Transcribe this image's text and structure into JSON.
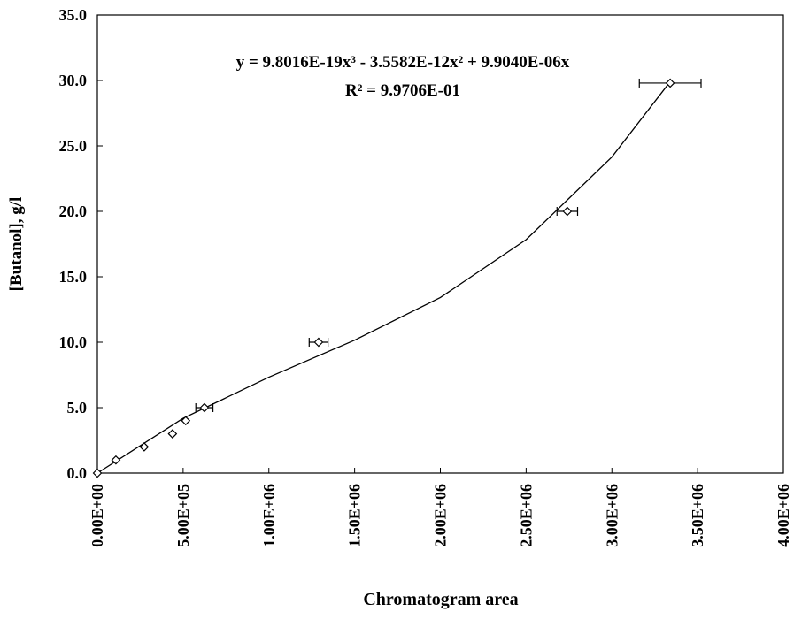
{
  "chart_data": {
    "type": "scatter",
    "equation": "y = 9.8016E-19x³ - 3.5582E-12x² + 9.9040E-06x",
    "r_squared": "R² = 9.9706E-01",
    "x_label": "Chromatogram area",
    "y_label": "[Butanol], g/l",
    "series": [
      {
        "color": "#000000",
        "x": [
          0,
          108000,
          273000,
          438000,
          515000,
          624000,
          1290000,
          2740000,
          3340000
        ],
        "values": [
          0,
          1.0,
          2.0,
          3.0,
          4.0,
          5.0,
          10.0,
          20.0,
          29.8
        ],
        "xerr": [
          null,
          null,
          null,
          null,
          null,
          50000,
          55000,
          60000,
          180000
        ]
      }
    ],
    "fit": {
      "color": "#000000",
      "x": [
        0,
        500000,
        1000000,
        1500000,
        2000000,
        2500000,
        3000000,
        3340000
      ],
      "values": [
        0,
        4.185,
        7.326,
        10.158,
        13.416,
        17.836,
        24.152,
        29.91
      ]
    },
    "xlim": [
      0,
      4000000
    ],
    "ylim": [
      0,
      35
    ],
    "xticks": [
      {
        "value": 0,
        "label": "0.00E+00"
      },
      {
        "value": 500000,
        "label": "5.00E+05"
      },
      {
        "value": 1000000,
        "label": "1.00E+06"
      },
      {
        "value": 1500000,
        "label": "1.50E+06"
      },
      {
        "value": 2000000,
        "label": "2.00E+06"
      },
      {
        "value": 2500000,
        "label": "2.50E+06"
      },
      {
        "value": 3000000,
        "label": "3.00E+06"
      },
      {
        "value": 3500000,
        "label": "3.50E+06"
      },
      {
        "value": 4000000,
        "label": "4.00E+06"
      }
    ],
    "yticks": [
      {
        "value": 0,
        "label": "0.0"
      },
      {
        "value": 5,
        "label": "5.0"
      },
      {
        "value": 10,
        "label": "10.0"
      },
      {
        "value": 15,
        "label": "15.0"
      },
      {
        "value": 20,
        "label": "20.0"
      },
      {
        "value": 25,
        "label": "25.0"
      },
      {
        "value": 30,
        "label": "30.0"
      },
      {
        "value": 35,
        "label": "35.0"
      }
    ]
  }
}
